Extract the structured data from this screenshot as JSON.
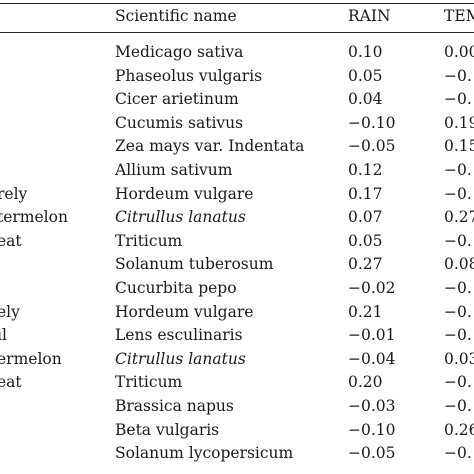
{
  "columns": {
    "col0": "",
    "scientific_name": "Scientific name",
    "rain": "RAIN",
    "temp": "TEM"
  },
  "rows": [
    {
      "crop": "",
      "scientific": "Medicago sativa",
      "italic": false,
      "rain": "0.10",
      "temp": "0.00"
    },
    {
      "crop": "",
      "scientific": "Phaseolus vulgaris",
      "italic": false,
      "rain": "0.05",
      "temp": "−0."
    },
    {
      "crop": "",
      "scientific": "Cicer arietinum",
      "italic": false,
      "rain": "0.04",
      "temp": "−0."
    },
    {
      "crop": "",
      "scientific": "Cucumis sativus",
      "italic": false,
      "rain": "−0.10",
      "temp": "0.19"
    },
    {
      "crop": "",
      "scientific": "Zea mays var. Indentata",
      "italic": false,
      "rain": "−0.05",
      "temp": "0.15"
    },
    {
      "crop": "",
      "scientific": "Allium sativum",
      "italic": false,
      "rain": "0.12",
      "temp": "−0."
    },
    {
      "crop": "rely",
      "scientific": "Hordeum vulgare",
      "italic": false,
      "rain": "0.17",
      "temp": "−0."
    },
    {
      "crop": "termelon",
      "scientific": "Citrullus lanatus",
      "italic": true,
      "rain": "0.07",
      "temp": "0.27"
    },
    {
      "crop": "eat",
      "scientific": "Triticum",
      "italic": false,
      "rain": "0.05",
      "temp": "−0."
    },
    {
      "crop": "",
      "scientific": "Solanum tuberosum",
      "italic": false,
      "rain": "0.27",
      "temp": "0.08"
    },
    {
      "crop": "",
      "scientific": "Cucurbita pepo",
      "italic": false,
      "rain": "−0.02",
      "temp": "−0."
    },
    {
      "crop": "ely",
      "scientific": "Hordeum vulgare",
      "italic": false,
      "rain": "0.21",
      "temp": "−0."
    },
    {
      "crop": "il",
      "scientific": "Lens esculinaris",
      "italic": false,
      "rain": "−0.01",
      "temp": "−0."
    },
    {
      "crop": "ermelon",
      "scientific": "Citrullus lanatus",
      "italic": true,
      "rain": "−0.04",
      "temp": "0.03"
    },
    {
      "crop": "eat",
      "scientific": "Triticum",
      "italic": false,
      "rain": "0.20",
      "temp": "−0."
    },
    {
      "crop": "",
      "scientific": "Brassica napus",
      "italic": false,
      "rain": "−0.03",
      "temp": "−0."
    },
    {
      "crop": "",
      "scientific": "Beta vulgaris",
      "italic": false,
      "rain": "−0.10",
      "temp": "0.26"
    },
    {
      "crop": "",
      "scientific": "Solanum lycopersicum",
      "italic": false,
      "rain": "−0.05",
      "temp": "−0."
    }
  ]
}
